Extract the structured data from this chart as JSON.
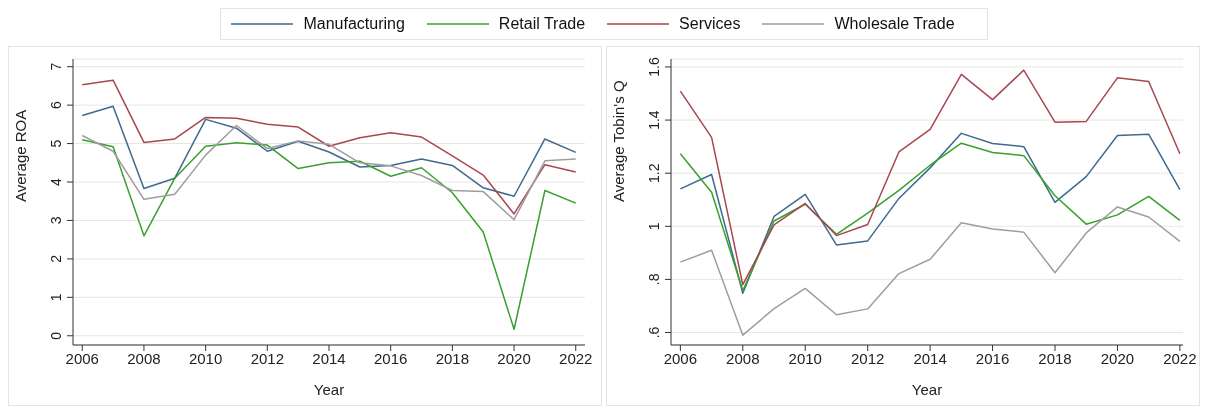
{
  "chart_data": [
    {
      "type": "line",
      "xlabel": "Year",
      "ylabel": "Average ROA",
      "x": [
        2006,
        2007,
        2008,
        2009,
        2010,
        2011,
        2012,
        2013,
        2014,
        2015,
        2016,
        2017,
        2018,
        2019,
        2020,
        2021,
        2022
      ],
      "xlim": [
        2005.7,
        2022.3
      ],
      "xticks": [
        2006,
        2008,
        2010,
        2012,
        2014,
        2016,
        2018,
        2020,
        2022
      ],
      "ylim": [
        -0.24,
        7.2
      ],
      "yticks": [
        0,
        1,
        2,
        3,
        4,
        5,
        6,
        7
      ],
      "grid": "y",
      "legend": "top",
      "marker": "none",
      "line_style": "solid",
      "series": [
        {
          "name": "Manufacturing",
          "color": "#3e6a8f",
          "values": [
            5.73,
            5.97,
            3.83,
            4.1,
            5.63,
            5.4,
            4.8,
            5.06,
            4.78,
            4.39,
            4.43,
            4.6,
            4.43,
            3.85,
            3.63,
            5.12,
            4.77
          ]
        },
        {
          "name": "Retail Trade",
          "color": "#38a02c",
          "values": [
            5.1,
            4.92,
            2.6,
            4.1,
            4.93,
            5.02,
            4.96,
            4.35,
            4.5,
            4.54,
            4.15,
            4.37,
            3.72,
            2.7,
            0.17,
            3.78,
            3.45
          ]
        },
        {
          "name": "Services",
          "color": "#a8474f",
          "values": [
            6.53,
            6.65,
            5.03,
            5.12,
            5.68,
            5.66,
            5.5,
            5.43,
            4.93,
            5.15,
            5.28,
            5.17,
            4.68,
            4.18,
            3.17,
            4.45,
            4.26
          ]
        },
        {
          "name": "Wholesale Trade",
          "color": "#9e9e9e",
          "values": [
            5.21,
            4.8,
            3.55,
            3.68,
            4.7,
            5.47,
            4.87,
            5.07,
            4.98,
            4.5,
            4.42,
            4.17,
            3.78,
            3.75,
            3.02,
            4.55,
            4.6
          ]
        }
      ]
    },
    {
      "type": "line",
      "xlabel": "Year",
      "ylabel": "Average Tobin's Q",
      "x": [
        2006,
        2007,
        2008,
        2009,
        2010,
        2011,
        2012,
        2013,
        2014,
        2015,
        2016,
        2017,
        2018,
        2019,
        2020,
        2021,
        2022
      ],
      "xlim": [
        2005.7,
        2022.1
      ],
      "xticks": [
        2006,
        2008,
        2010,
        2012,
        2014,
        2016,
        2018,
        2020,
        2022
      ],
      "ylim": [
        0.553,
        1.63
      ],
      "yticks": [
        {
          "value": 0.6,
          "label": ".6"
        },
        {
          "value": 0.8,
          "label": ".8"
        },
        1,
        1.2,
        1.4,
        1.6
      ],
      "grid": "y",
      "marker": "none",
      "line_style": "solid",
      "series": [
        {
          "color": "#3e6a8f",
          "values": [
            1.141,
            1.195,
            0.748,
            1.037,
            1.12,
            0.93,
            0.945,
            1.105,
            1.22,
            1.35,
            1.312,
            1.3,
            1.09,
            1.187,
            1.342,
            1.347,
            1.138
          ]
        },
        {
          "color": "#38a02c",
          "values": [
            1.273,
            1.128,
            0.758,
            1.02,
            1.083,
            0.97,
            1.05,
            1.135,
            1.23,
            1.313,
            1.278,
            1.266,
            1.115,
            1.008,
            1.043,
            1.113,
            1.022
          ]
        },
        {
          "color": "#a8474f",
          "values": [
            1.509,
            1.335,
            0.78,
            1.005,
            1.086,
            0.965,
            1.007,
            1.28,
            1.365,
            1.572,
            1.477,
            1.588,
            1.392,
            1.395,
            1.559,
            1.545,
            1.273
          ]
        },
        {
          "color": "#9e9e9e",
          "values": [
            0.865,
            0.91,
            0.59,
            0.69,
            0.766,
            0.667,
            0.689,
            0.822,
            0.876,
            1.013,
            0.99,
            0.978,
            0.825,
            0.975,
            1.073,
            1.035,
            0.943
          ]
        }
      ]
    }
  ]
}
